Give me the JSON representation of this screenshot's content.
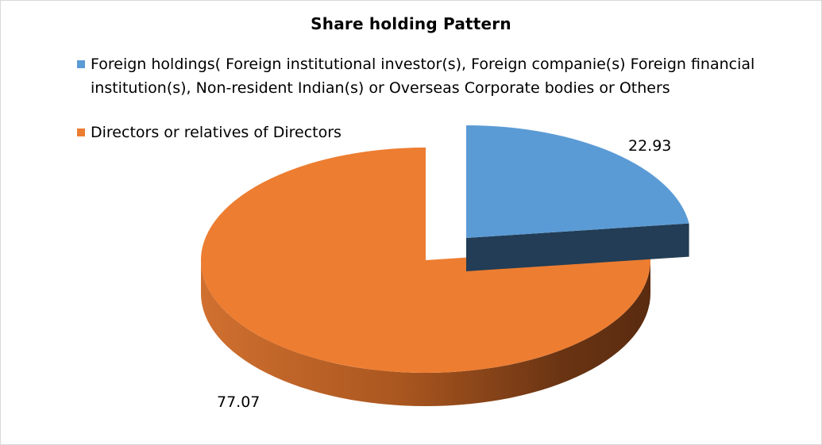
{
  "chart_data": {
    "type": "pie",
    "title": "Share holding  Pattern",
    "categories": [
      "Foreign holdings( Foreign institutional investor(s), Foreign companie(s) Foreign financial institution(s), Non-resident Indian(s) or Overseas Corporate bodies or Others",
      "Directors or relatives of Directors"
    ],
    "values": [
      22.93,
      77.07
    ],
    "data_labels": [
      "22.93",
      "77.07"
    ],
    "colors": [
      "#5b9bd5",
      "#ed7d31"
    ],
    "style": "3d-exploded",
    "legend_position": "top"
  }
}
